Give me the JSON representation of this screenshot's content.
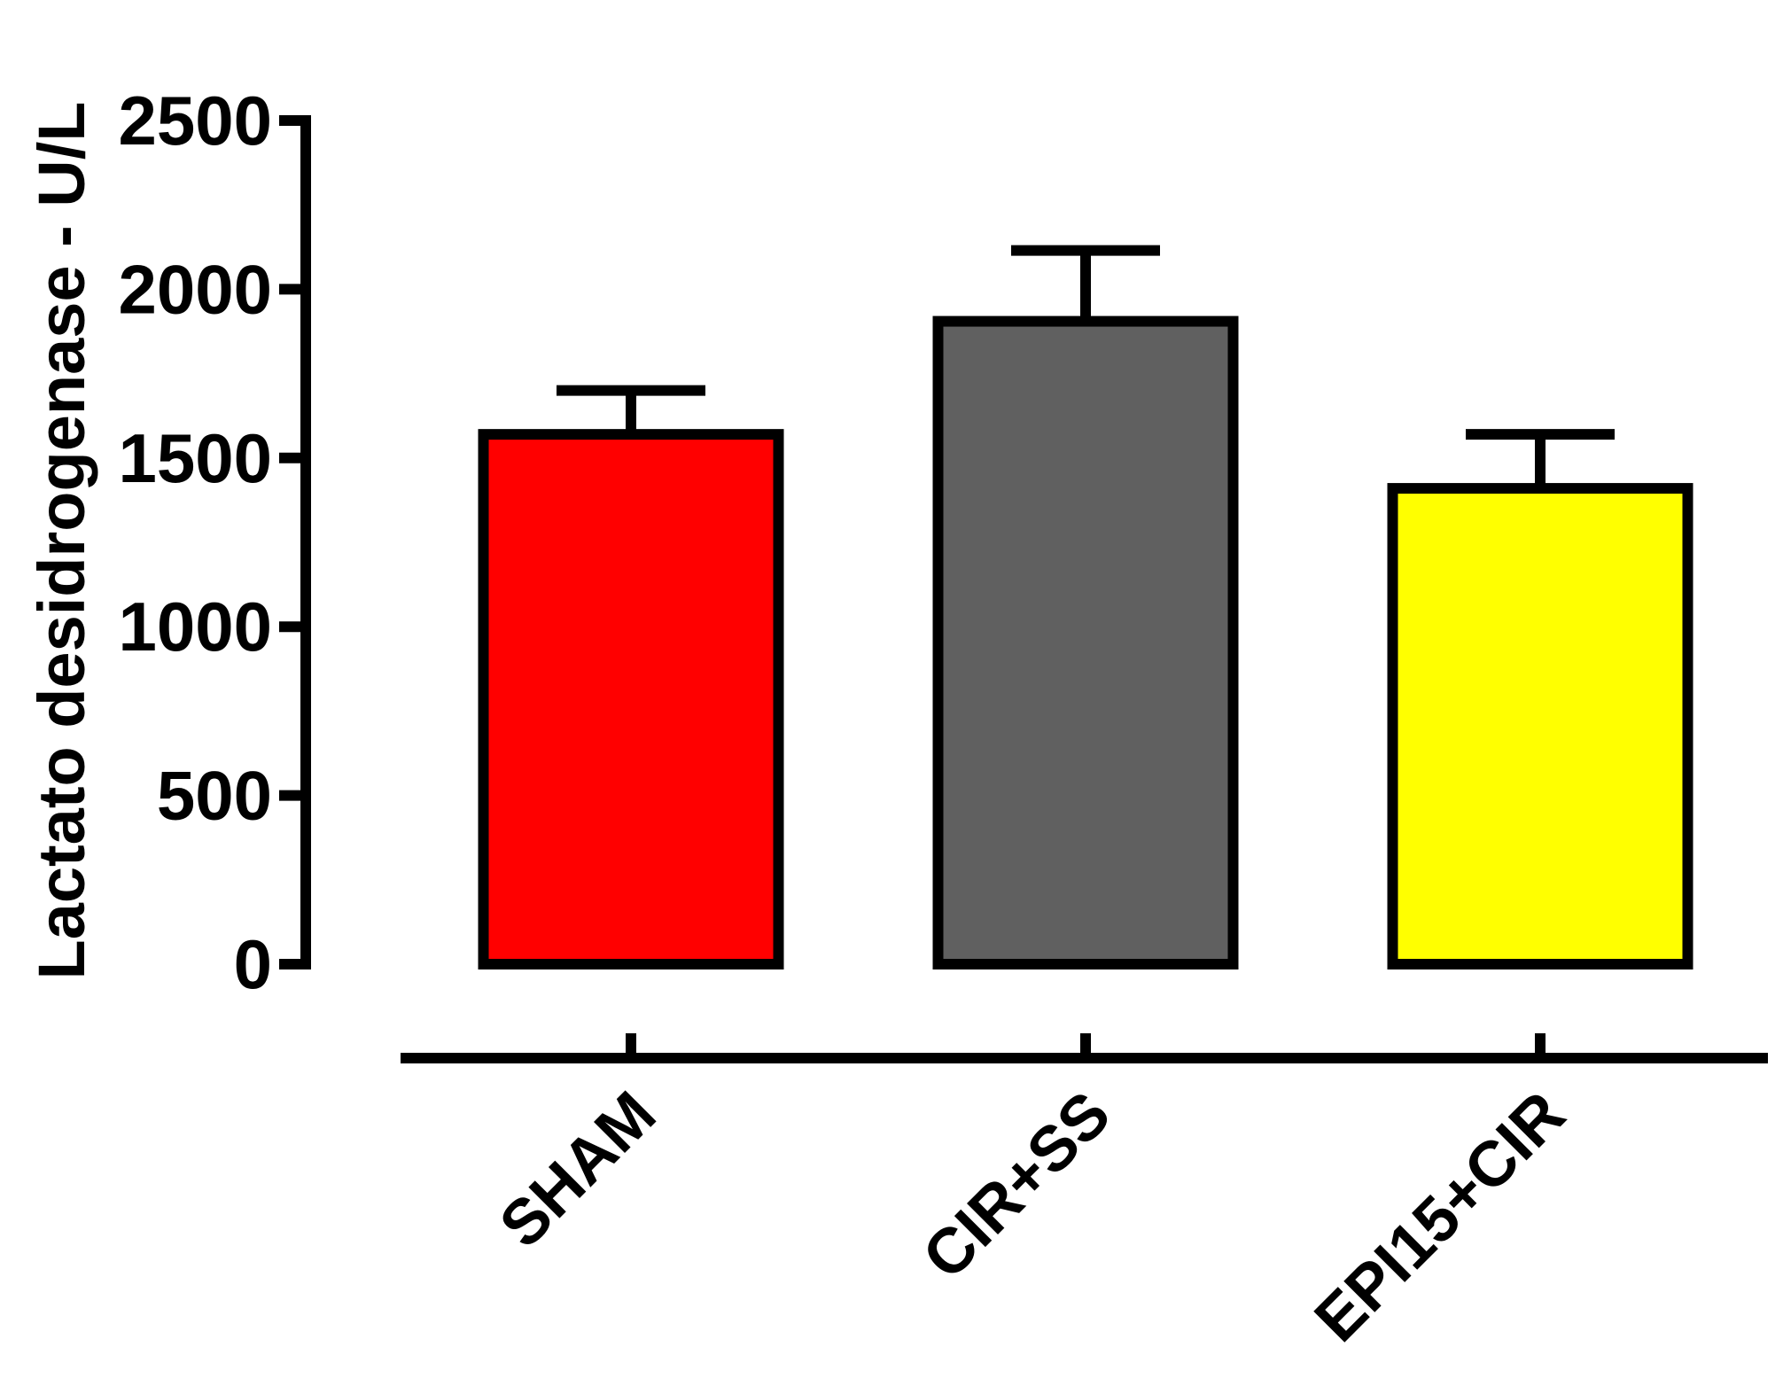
{
  "chart_data": {
    "type": "bar",
    "title": "",
    "xlabel": "",
    "ylabel": "Lactato desidrogenase - U/L",
    "ylim": [
      0,
      2500
    ],
    "yticks": [
      0,
      500,
      1000,
      1500,
      2000,
      2500
    ],
    "ytick_labels": [
      "0",
      "500",
      "1000",
      "1500",
      "2000",
      "2500"
    ],
    "categories": [
      "SHAM",
      "CIR+SS",
      "EPI15+CIR"
    ],
    "values": [
      1570,
      1905,
      1410
    ],
    "errors": [
      130,
      210,
      160
    ],
    "colors": [
      "#ff0000",
      "#606060",
      "#ffff00"
    ],
    "grid": false,
    "legend": "none"
  }
}
